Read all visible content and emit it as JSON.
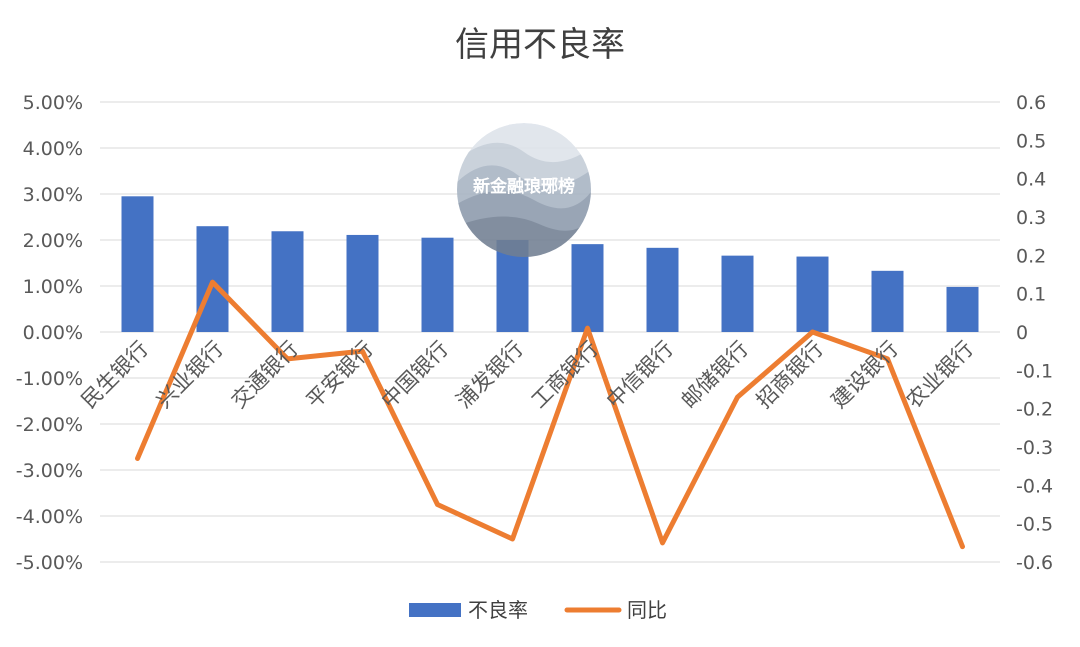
{
  "chart_data": {
    "type": "bar",
    "title": "信用不良率",
    "categories": [
      "民生银行",
      "兴业银行",
      "交通银行",
      "平安银行",
      "中国银行",
      "浦发银行",
      "工商银行",
      "中信银行",
      "邮储银行",
      "招商银行",
      "建设银行",
      "农业银行"
    ],
    "series": [
      {
        "name": "不良率",
        "type": "bar",
        "axis": "left",
        "color": "#4472C4",
        "values": [
          2.95,
          2.3,
          2.19,
          2.11,
          2.05,
          2.0,
          1.91,
          1.83,
          1.66,
          1.64,
          1.33,
          0.98
        ]
      },
      {
        "name": "同比",
        "type": "line",
        "axis": "right",
        "color": "#ED7D31",
        "values": [
          -0.33,
          0.13,
          -0.07,
          -0.05,
          -0.45,
          -0.54,
          0.01,
          -0.55,
          -0.17,
          0.0,
          -0.07,
          -0.56
        ]
      }
    ],
    "y_left": {
      "min": -5,
      "max": 5,
      "ticks": [
        5,
        4,
        3,
        2,
        1,
        0,
        -1,
        -2,
        -3,
        -4,
        -5
      ],
      "tick_labels": [
        "5.00%",
        "4.00%",
        "3.00%",
        "2.00%",
        "1.00%",
        "0.00%",
        "-1.00%",
        "-2.00%",
        "-3.00%",
        "-4.00%",
        "-5.00%"
      ]
    },
    "y_right": {
      "min": -0.6,
      "max": 0.6,
      "ticks": [
        0.6,
        0.5,
        0.4,
        0.3,
        0.2,
        0.1,
        0,
        -0.1,
        -0.2,
        -0.3,
        -0.4,
        -0.5,
        -0.6
      ],
      "tick_labels": [
        "0.6",
        "0.5",
        "0.4",
        "0.3",
        "0.2",
        "0.1",
        "0",
        "-0.1",
        "-0.2",
        "-0.3",
        "-0.4",
        "-0.5",
        "-0.6"
      ]
    },
    "grid": true,
    "legend_position": "bottom-center",
    "watermark": {
      "text": "新金融琅琊榜",
      "icon": "mountain-landscape-icon"
    }
  }
}
